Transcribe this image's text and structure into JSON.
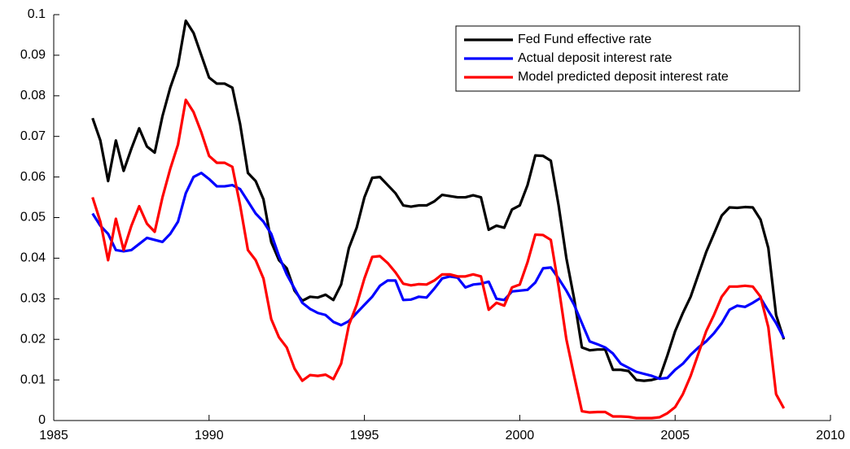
{
  "chart_data": {
    "type": "line",
    "x": [
      1986.25,
      1986.5,
      1986.75,
      1987,
      1987.25,
      1987.5,
      1987.75,
      1988,
      1988.25,
      1988.5,
      1988.75,
      1989,
      1989.25,
      1989.5,
      1989.75,
      1990,
      1990.25,
      1990.5,
      1990.75,
      1991,
      1991.25,
      1991.5,
      1991.75,
      1992,
      1992.25,
      1992.5,
      1992.75,
      1993,
      1993.25,
      1993.5,
      1993.75,
      1994,
      1994.25,
      1994.5,
      1994.75,
      1995,
      1995.25,
      1995.5,
      1995.75,
      1996,
      1996.25,
      1996.5,
      1996.75,
      1997,
      1997.25,
      1997.5,
      1997.75,
      1998,
      1998.25,
      1998.5,
      1998.75,
      1999,
      1999.25,
      1999.5,
      1999.75,
      2000,
      2000.25,
      2000.5,
      2000.75,
      2001,
      2001.25,
      2001.5,
      2001.75,
      2002,
      2002.25,
      2002.5,
      2002.75,
      2003,
      2003.25,
      2003.5,
      2003.75,
      2004,
      2004.25,
      2004.5,
      2004.75,
      2005,
      2005.25,
      2005.5,
      2005.75,
      2006,
      2006.25,
      2006.5,
      2006.75,
      2007,
      2007.25,
      2007.5,
      2007.75,
      2008,
      2008.25,
      2008.5
    ],
    "series": [
      {
        "name": "Fed Fund effective rate",
        "color": "#000000",
        "values": [
          0.0745,
          0.069,
          0.059,
          0.069,
          0.0615,
          0.067,
          0.072,
          0.0675,
          0.066,
          0.075,
          0.082,
          0.0875,
          0.0985,
          0.0955,
          0.09,
          0.0845,
          0.083,
          0.083,
          0.082,
          0.073,
          0.061,
          0.059,
          0.0545,
          0.044,
          0.0395,
          0.0375,
          0.032,
          0.0295,
          0.0305,
          0.0303,
          0.031,
          0.0297,
          0.0335,
          0.0425,
          0.0475,
          0.055,
          0.0598,
          0.06,
          0.058,
          0.056,
          0.053,
          0.0527,
          0.053,
          0.053,
          0.054,
          0.0556,
          0.0553,
          0.055,
          0.055,
          0.0555,
          0.055,
          0.047,
          0.048,
          0.0475,
          0.052,
          0.053,
          0.058,
          0.0653,
          0.0652,
          0.064,
          0.053,
          0.04,
          0.03,
          0.018,
          0.0173,
          0.0175,
          0.0175,
          0.0125,
          0.0125,
          0.0122,
          0.01,
          0.0098,
          0.01,
          0.0105,
          0.016,
          0.022,
          0.0265,
          0.0305,
          0.036,
          0.0415,
          0.046,
          0.0505,
          0.0525,
          0.0524,
          0.0526,
          0.0525,
          0.0495,
          0.0425,
          0.026,
          0.02
        ]
      },
      {
        "name": "Actual deposit interest rate",
        "color": "#0000ff",
        "values": [
          0.051,
          0.048,
          0.046,
          0.042,
          0.0417,
          0.042,
          0.0435,
          0.045,
          0.0445,
          0.044,
          0.046,
          0.049,
          0.056,
          0.06,
          0.061,
          0.0595,
          0.0577,
          0.0577,
          0.058,
          0.057,
          0.054,
          0.051,
          0.049,
          0.046,
          0.0405,
          0.036,
          0.0325,
          0.029,
          0.0275,
          0.0265,
          0.026,
          0.0243,
          0.0235,
          0.0245,
          0.0265,
          0.0285,
          0.0305,
          0.0332,
          0.0345,
          0.0345,
          0.0297,
          0.0298,
          0.0305,
          0.0303,
          0.0325,
          0.035,
          0.0355,
          0.0352,
          0.0328,
          0.0335,
          0.0337,
          0.0342,
          0.03,
          0.0297,
          0.0318,
          0.032,
          0.0322,
          0.034,
          0.0375,
          0.0377,
          0.035,
          0.032,
          0.0285,
          0.024,
          0.0195,
          0.0188,
          0.018,
          0.0165,
          0.014,
          0.013,
          0.012,
          0.0115,
          0.011,
          0.0103,
          0.0105,
          0.0125,
          0.014,
          0.0162,
          0.018,
          0.0195,
          0.0215,
          0.024,
          0.0273,
          0.0283,
          0.028,
          0.029,
          0.0302,
          0.027,
          0.024,
          0.0203
        ]
      },
      {
        "name": "Model predicted deposit interest rate",
        "color": "#ff0000",
        "values": [
          0.055,
          0.049,
          0.0395,
          0.0497,
          0.042,
          0.048,
          0.0528,
          0.0485,
          0.0465,
          0.055,
          0.062,
          0.068,
          0.079,
          0.076,
          0.071,
          0.0652,
          0.0635,
          0.0635,
          0.0625,
          0.053,
          0.042,
          0.0395,
          0.035,
          0.025,
          0.0205,
          0.018,
          0.0128,
          0.0098,
          0.0112,
          0.011,
          0.0113,
          0.0102,
          0.014,
          0.0235,
          0.0285,
          0.035,
          0.0403,
          0.0405,
          0.0388,
          0.0365,
          0.0337,
          0.0333,
          0.0336,
          0.0335,
          0.0345,
          0.036,
          0.036,
          0.0355,
          0.0355,
          0.036,
          0.0355,
          0.0273,
          0.029,
          0.0283,
          0.0328,
          0.0335,
          0.039,
          0.0458,
          0.0457,
          0.0445,
          0.033,
          0.02,
          0.011,
          0.0023,
          0.002,
          0.0021,
          0.0021,
          0.001,
          0.001,
          0.0009,
          0.0006,
          0.0006,
          0.0006,
          0.0008,
          0.0018,
          0.0033,
          0.0065,
          0.011,
          0.0165,
          0.022,
          0.026,
          0.0305,
          0.033,
          0.033,
          0.0332,
          0.033,
          0.0305,
          0.023,
          0.0065,
          0.003
        ]
      }
    ],
    "xlim": [
      1985,
      2010
    ],
    "xticks": [
      1985,
      1990,
      1995,
      2000,
      2005,
      2010
    ],
    "ylim": [
      0,
      0.1
    ],
    "yticks": [
      0,
      0.01,
      0.02,
      0.03,
      0.04,
      0.05,
      0.06,
      0.07,
      0.08,
      0.09,
      0.1
    ],
    "legend": "upper right"
  }
}
